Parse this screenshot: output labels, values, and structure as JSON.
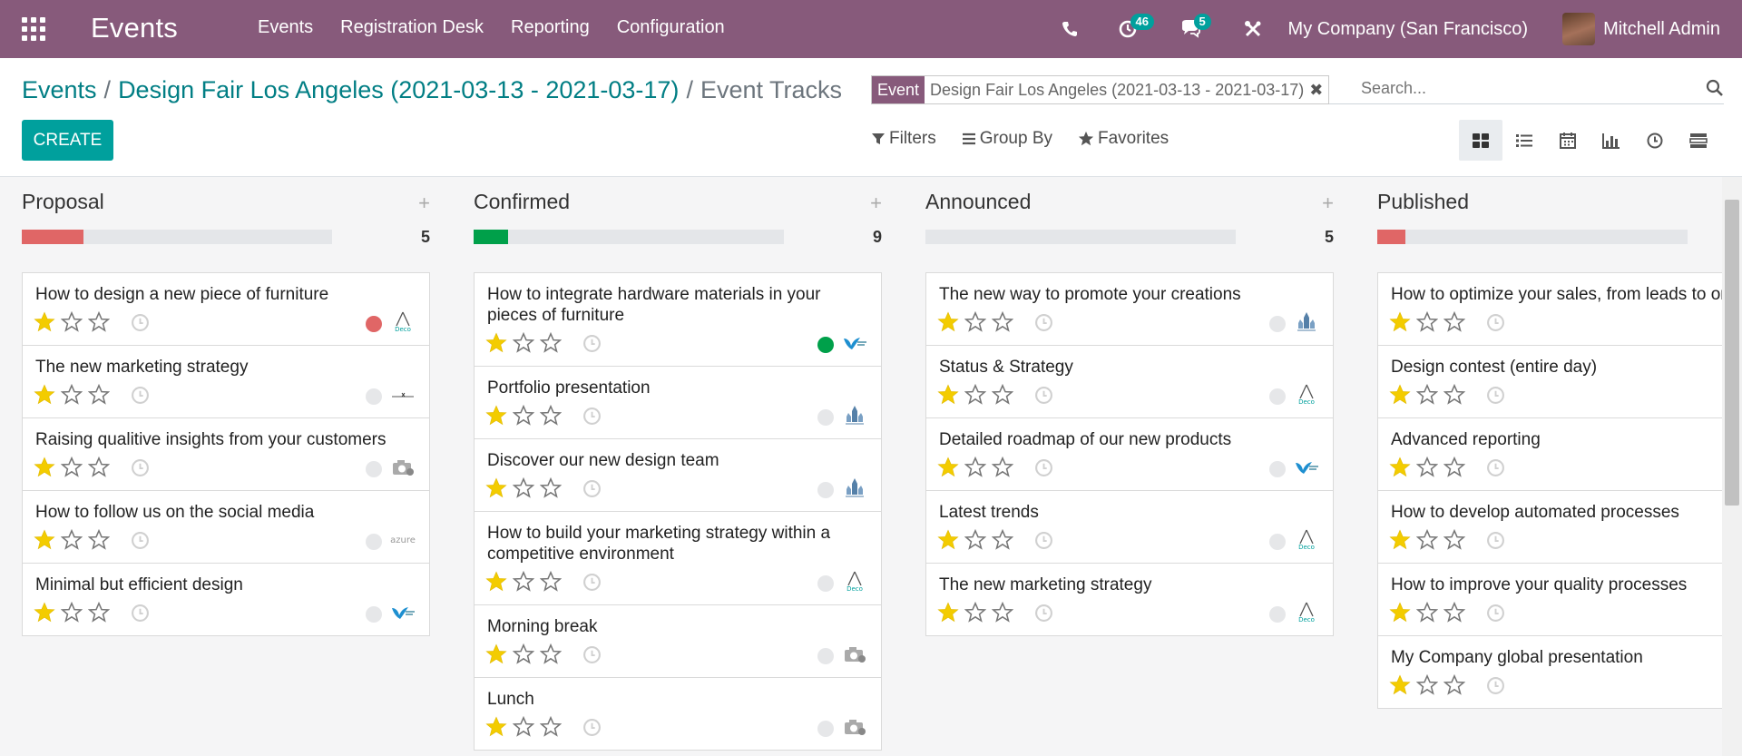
{
  "navbar": {
    "app_title": "Events",
    "menu": [
      "Events",
      "Registration Desk",
      "Reporting",
      "Configuration"
    ],
    "activity_count": "46",
    "messages_count": "5",
    "company": "My Company (San Francisco)",
    "user": "Mitchell Admin"
  },
  "breadcrumb": {
    "root": "Events",
    "event": "Design Fair Los Angeles (2021-03-13 - 2021-03-17)",
    "current": "Event Tracks",
    "separator": "/"
  },
  "actions": {
    "create": "CREATE"
  },
  "search": {
    "facet_label": "Event",
    "facet_value": "Design Fair Los Angeles (2021-03-13 - 2021-03-17)",
    "placeholder": "Search..."
  },
  "filters": {
    "filters": "Filters",
    "group_by": "Group By",
    "favorites": "Favorites"
  },
  "colors": {
    "accent": "#00a09d",
    "brand": "#875a7b",
    "red": "#e06666",
    "green": "#00a04a",
    "star": "#f3cc00"
  },
  "columns": [
    {
      "title": "Proposal",
      "count": "5",
      "progress_fraction": 0.2,
      "progress_color": "#e06666",
      "cards": [
        {
          "title": "How to design a new piece of furniture",
          "status": "red",
          "logo": "deco"
        },
        {
          "title": "The new marketing strategy",
          "status": "grey",
          "logo": "line"
        },
        {
          "title": "Raising qualitive insights from your customers",
          "status": "grey",
          "logo": "camera"
        },
        {
          "title": "How to follow us on the social media",
          "status": "grey",
          "logo": "azure"
        },
        {
          "title": "Minimal but efficient design",
          "status": "grey",
          "logo": "bird"
        }
      ]
    },
    {
      "title": "Confirmed",
      "count": "9",
      "progress_fraction": 0.11,
      "progress_color": "#00a04a",
      "cards": [
        {
          "title": "How to integrate hardware materials in your pieces of furniture",
          "status": "green",
          "logo": "bird"
        },
        {
          "title": "Portfolio presentation",
          "status": "grey",
          "logo": "castle"
        },
        {
          "title": "Discover our new design team",
          "status": "grey",
          "logo": "castle"
        },
        {
          "title": "How to build your marketing strategy within a competitive environment",
          "status": "grey",
          "logo": "deco"
        },
        {
          "title": "Morning break",
          "status": "grey",
          "logo": "camera"
        },
        {
          "title": "Lunch",
          "status": "grey",
          "logo": "camera"
        }
      ]
    },
    {
      "title": "Announced",
      "count": "5",
      "progress_fraction": 0,
      "progress_color": "#e4e6e9",
      "cards": [
        {
          "title": "The new way to promote your creations",
          "status": "grey",
          "logo": "castle"
        },
        {
          "title": "Status & Strategy",
          "status": "grey",
          "logo": "deco"
        },
        {
          "title": "Detailed roadmap of our new products",
          "status": "grey",
          "logo": "bird"
        },
        {
          "title": "Latest trends",
          "status": "grey",
          "logo": "deco"
        },
        {
          "title": "The new marketing strategy",
          "status": "grey",
          "logo": "deco"
        }
      ]
    },
    {
      "title": "Published",
      "count": "",
      "progress_fraction": 0.09,
      "progress_color": "#e06666",
      "cards": [
        {
          "title": "How to optimize your sales, from leads to orders",
          "status": "",
          "logo": ""
        },
        {
          "title": "Design contest (entire day)",
          "status": "",
          "logo": ""
        },
        {
          "title": "Advanced reporting",
          "status": "",
          "logo": ""
        },
        {
          "title": "How to develop automated processes",
          "status": "",
          "logo": ""
        },
        {
          "title": "How to improve your quality processes",
          "status": "",
          "logo": ""
        },
        {
          "title": "My Company global presentation",
          "status": "",
          "logo": ""
        }
      ]
    }
  ]
}
